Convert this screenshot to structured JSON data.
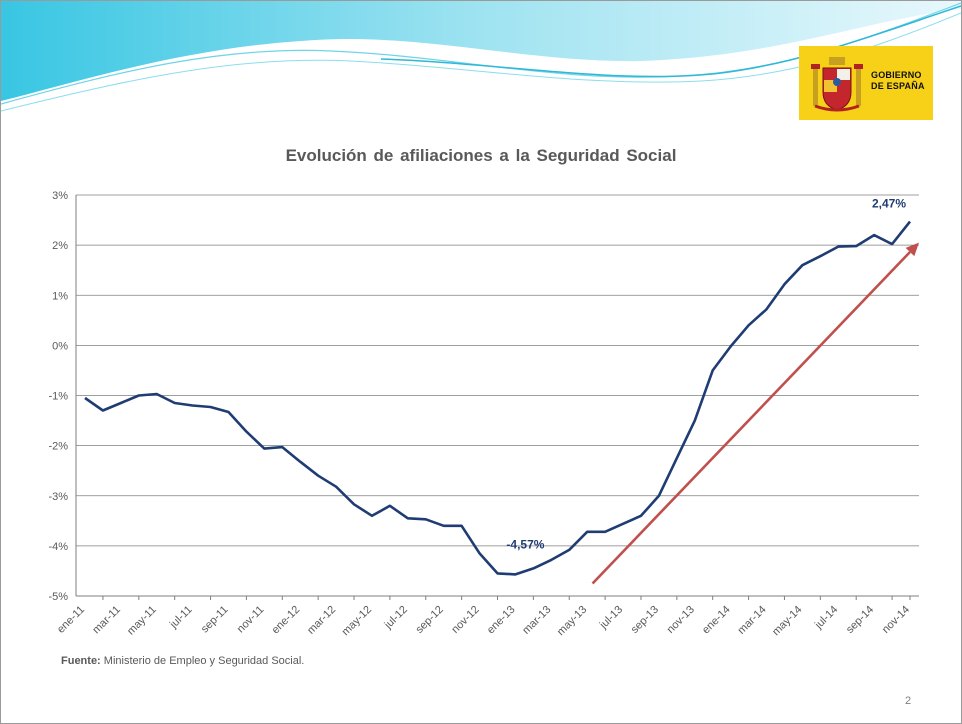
{
  "logo": {
    "line1": "GOBIERNO",
    "line2": "DE ESPAÑA"
  },
  "colors": {
    "series": "#1f3d73",
    "trend_arrow": "#c0504d",
    "gridline": "#7f7f7f",
    "logo_yellow": "#f7d117",
    "wave_cyan": "#5fd0e6"
  },
  "chart_data": {
    "type": "line",
    "title": "Evolución de afiliaciones a la Seguridad Social",
    "ylim": [
      -5,
      3
    ],
    "yticks": [
      "3%",
      "2%",
      "1%",
      "0%",
      "-1%",
      "-2%",
      "-3%",
      "-4%",
      "-5%"
    ],
    "x_labels": [
      "ene-11",
      "mar-11",
      "may-11",
      "jul-11",
      "sep-11",
      "nov-11",
      "ene-12",
      "mar-12",
      "may-12",
      "jul-12",
      "sep-12",
      "nov-12",
      "ene-13",
      "mar-13",
      "may-13",
      "jul-13",
      "sep-13",
      "nov-13",
      "ene-14",
      "mar-14",
      "may-14",
      "jul-14",
      "sep-14",
      "nov-14"
    ],
    "series": [
      {
        "values": [
          -1.05,
          -1.3,
          -1.15,
          -1.0,
          -0.97,
          -1.15,
          -1.2,
          -1.23,
          -1.33,
          -1.72,
          -2.06,
          -2.03,
          -2.32,
          -2.6,
          -2.82,
          -3.17,
          -3.4,
          -3.2,
          -3.45,
          -3.47,
          -3.6,
          -3.6,
          -4.15,
          -4.55,
          -4.57,
          -4.45,
          -4.28,
          -4.08,
          -3.72,
          -3.72,
          -3.56,
          -3.4,
          -3.0,
          -2.25,
          -1.5,
          -0.5,
          -0.02,
          0.4,
          0.72,
          1.22,
          1.6,
          1.78,
          1.97,
          1.98,
          2.2,
          2.02,
          2.47
        ],
        "labels": [
          {
            "index": 24,
            "text": "-4,57%"
          },
          {
            "index": 46,
            "text": "2,47%"
          }
        ]
      }
    ],
    "annotations": [
      {
        "type": "trend-arrow",
        "from": [
          28.3,
          -4.75
        ],
        "to": [
          46.5,
          2.05
        ]
      }
    ],
    "grid": true
  },
  "footer": {
    "source_label": "Fuente:",
    "source_text": " Ministerio de Empleo y Seguridad Social.",
    "page_number": "2"
  }
}
